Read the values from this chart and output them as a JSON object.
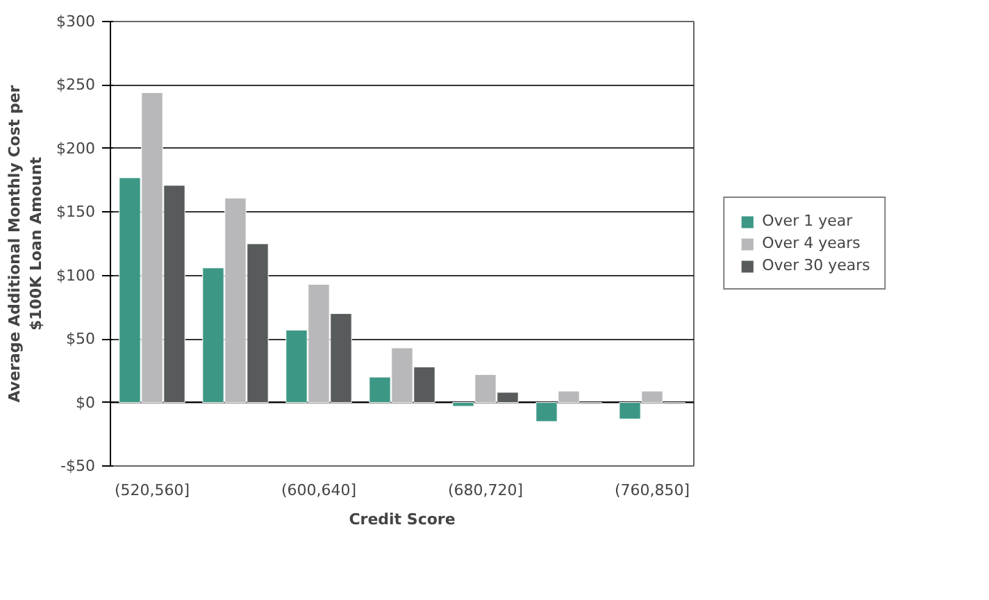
{
  "chart_data": {
    "type": "bar",
    "xlabel": "Credit Score",
    "ylabel": "Average Additional Monthly Cost per $100K Loan Amount",
    "categories": [
      "(520,560]",
      null,
      "(600,640]",
      null,
      "(680,720]",
      null,
      "(760,850]"
    ],
    "series": [
      {
        "name": "Over 1 year",
        "color": "#3c9885",
        "values": [
          177,
          106,
          57,
          20,
          -3,
          -15,
          -13
        ]
      },
      {
        "name": "Over 4 years",
        "color": "#b8b8ba",
        "values": [
          244,
          161,
          93,
          43,
          22,
          9,
          9
        ]
      },
      {
        "name": "Over 30 years",
        "color": "#575b5b",
        "values": [
          171,
          125,
          70,
          28,
          8,
          -1,
          -1
        ]
      }
    ],
    "ylim": [
      -50,
      300
    ],
    "yticks": [
      {
        "value": -50,
        "label": "-$50"
      },
      {
        "value": 0,
        "label": "$0"
      },
      {
        "value": 50,
        "label": "$50"
      },
      {
        "value": 100,
        "label": "$100"
      },
      {
        "value": 150,
        "label": "$150"
      },
      {
        "value": 200,
        "label": "$200"
      },
      {
        "value": 250,
        "label": "$250"
      },
      {
        "value": 300,
        "label": "$300"
      }
    ],
    "grid": "y",
    "legend": "right"
  }
}
